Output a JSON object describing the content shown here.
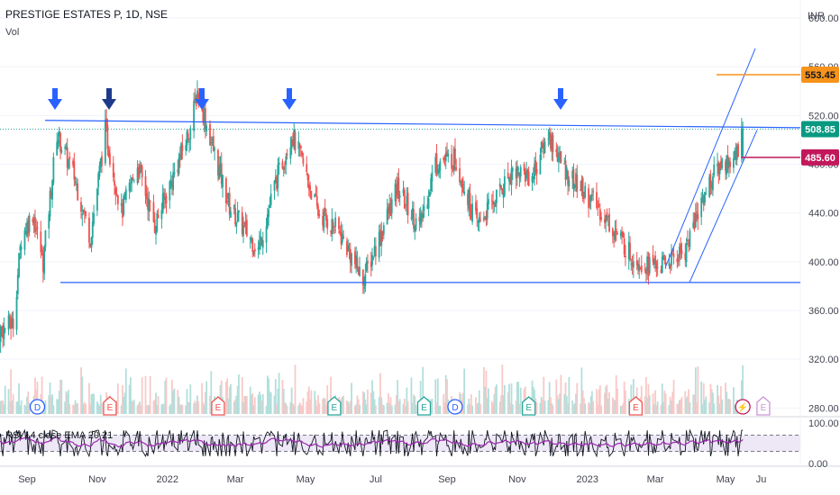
{
  "header": {
    "title": "PRESTIGE ESTATES P, 1D, NSE",
    "vol_label": "Vol",
    "currency": "INR"
  },
  "rsi_label": "RSI 14 close EMA 20 21",
  "colors": {
    "up": "#26a69a",
    "down": "#ef5350",
    "trendline": "#2962ff",
    "arrow": "#2962ff",
    "arrow_dark": "#1e3a8a",
    "orange": "#f7931a",
    "crimson": "#c2185b",
    "green_tag": "#089981",
    "rsi_line": "#131722",
    "rsi_ma": "#9c27b0",
    "rsi_band": "#ede7f6"
  },
  "price_tags": [
    {
      "label": "553.45",
      "value": 553.45,
      "color": "#f7931a",
      "text_color": "#131722"
    },
    {
      "label": "508.85",
      "value": 508.85,
      "color": "#089981",
      "text_color": "#ffffff"
    },
    {
      "label": "485.60",
      "value": 485.6,
      "color": "#c2185b",
      "text_color": "#ffffff"
    }
  ],
  "event_markers": [
    {
      "letter": "D",
      "date": "Sep 10"
    },
    {
      "letter": "E",
      "date": "Nov 12"
    },
    {
      "letter": "E",
      "date": "Feb 14"
    },
    {
      "letter": "E",
      "date": "May 26"
    },
    {
      "letter": "E",
      "date": "Aug 12"
    },
    {
      "letter": "D",
      "date": "Sep 8"
    },
    {
      "letter": "E",
      "date": "Nov 11"
    },
    {
      "letter": "E",
      "date": "Feb 12"
    },
    {
      "letter": "⚡",
      "date": "May 16"
    },
    {
      "letter": "E",
      "date": "May 26"
    }
  ],
  "chart_data": {
    "type": "candlestick",
    "title": "PRESTIGE ESTATES P, 1D, NSE",
    "ylabel": "INR",
    "ylim": [
      281,
      600
    ],
    "y_ticks": [
      "600.00",
      "560.00",
      "520.00",
      "480.00",
      "440.00",
      "400.00",
      "360.00",
      "320.00",
      "280.00"
    ],
    "x_ticks": [
      "Sep",
      "Nov",
      "2022",
      "Mar",
      "May",
      "Jul",
      "Sep",
      "Nov",
      "2023",
      "Mar",
      "May",
      "Ju"
    ],
    "close_path": [
      {
        "date": "Aug 02 2021",
        "close": 340
      },
      {
        "date": "Aug 20 2021",
        "close": 350
      },
      {
        "date": "Aug 27 2021",
        "close": 420
      },
      {
        "date": "Sep 06 2021",
        "close": 440
      },
      {
        "date": "Sep 15 2021",
        "close": 400
      },
      {
        "date": "Sep 27 2021",
        "close": 505
      },
      {
        "date": "Oct 12 2021",
        "close": 470
      },
      {
        "date": "Oct 26 2021",
        "close": 420
      },
      {
        "date": "Nov 08 2021",
        "close": 508
      },
      {
        "date": "Nov 22 2021",
        "close": 440
      },
      {
        "date": "Dec 06 2021",
        "close": 480
      },
      {
        "date": "Dec 21 2021",
        "close": 430
      },
      {
        "date": "Jan 06 2022",
        "close": 470
      },
      {
        "date": "Jan 21 2022",
        "close": 510
      },
      {
        "date": "Jan 27 2022",
        "close": 540
      },
      {
        "date": "Feb 09 2022",
        "close": 495
      },
      {
        "date": "Feb 24 2022",
        "close": 445
      },
      {
        "date": "Mar 10 2022",
        "close": 425
      },
      {
        "date": "Mar 21 2022",
        "close": 410
      },
      {
        "date": "Apr 05 2022",
        "close": 465
      },
      {
        "date": "Apr 19 2022",
        "close": 505
      },
      {
        "date": "Apr 27 2022",
        "close": 485
      },
      {
        "date": "May 12 2022",
        "close": 440
      },
      {
        "date": "May 30 2022",
        "close": 425
      },
      {
        "date": "Jun 20 2022",
        "close": 385
      },
      {
        "date": "Jul 04 2022",
        "close": 420
      },
      {
        "date": "Jul 20 2022",
        "close": 460
      },
      {
        "date": "Aug 08 2022",
        "close": 428
      },
      {
        "date": "Aug 22 2022",
        "close": 482
      },
      {
        "date": "Sep 08 2022",
        "close": 485
      },
      {
        "date": "Sep 27 2022",
        "close": 430
      },
      {
        "date": "Oct 12 2022",
        "close": 450
      },
      {
        "date": "Oct 28 2022",
        "close": 476
      },
      {
        "date": "Nov 14 2022",
        "close": 470
      },
      {
        "date": "Nov 28 2022",
        "close": 505
      },
      {
        "date": "Dec 12 2022",
        "close": 475
      },
      {
        "date": "Dec 26 2022",
        "close": 460
      },
      {
        "date": "Jan 10 2023",
        "close": 445
      },
      {
        "date": "Jan 25 2023",
        "close": 425
      },
      {
        "date": "Feb 08 2023",
        "close": 405
      },
      {
        "date": "Feb 22 2023",
        "close": 398
      },
      {
        "date": "Mar 08 2023",
        "close": 397
      },
      {
        "date": "Mar 27 2023",
        "close": 410
      },
      {
        "date": "Apr 12 2023",
        "close": 455
      },
      {
        "date": "Apr 26 2023",
        "close": 480
      },
      {
        "date": "May 10 2023",
        "close": 485
      },
      {
        "date": "May 16 2023",
        "close": 508.85
      }
    ],
    "levels": {
      "resistance": 512,
      "support": 383,
      "last_price": 508.85,
      "target": 553.45,
      "stop": 485.6
    },
    "rsi": {
      "name": "RSI 14 close EMA 20 21",
      "upper": 70,
      "lower": 30,
      "ticks": [
        "100.00",
        "0.00"
      ]
    }
  }
}
